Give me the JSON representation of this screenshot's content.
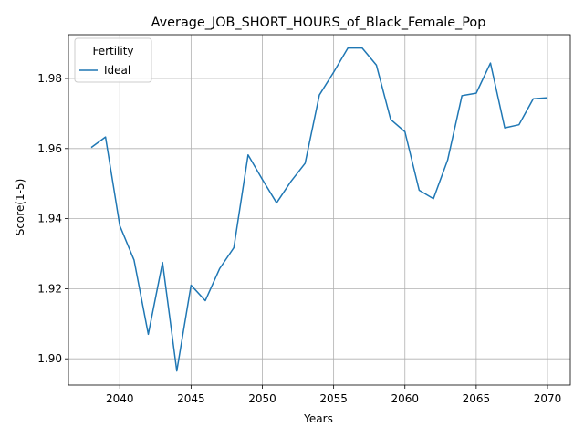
{
  "chart_data": {
    "type": "line",
    "title": "Average_JOB_SHORT_HOURS_of_Black_Female_Pop",
    "xlabel": "Years",
    "ylabel": "Score(1-5)",
    "xlim": [
      2036.4,
      2071.6
    ],
    "ylim": [
      1.8925,
      1.9925
    ],
    "xticks": [
      2040,
      2045,
      2050,
      2055,
      2060,
      2065,
      2070
    ],
    "yticks": [
      1.9,
      1.92,
      1.94,
      1.96,
      1.98
    ],
    "xtick_labels": [
      "2040",
      "2045",
      "2050",
      "2055",
      "2060",
      "2065",
      "2070"
    ],
    "ytick_labels": [
      "1.90",
      "1.92",
      "1.94",
      "1.96",
      "1.98"
    ],
    "grid": true,
    "legend": {
      "title": "Fertility",
      "placement": "top-left"
    },
    "series": [
      {
        "name": "Ideal",
        "color": "#1f77b4",
        "x": [
          2038,
          2039,
          2040,
          2041,
          2042,
          2043,
          2044,
          2045,
          2046,
          2047,
          2048,
          2049,
          2050,
          2051,
          2052,
          2053,
          2054,
          2055,
          2056,
          2057,
          2058,
          2059,
          2060,
          2061,
          2062,
          2063,
          2064,
          2065,
          2066,
          2067,
          2068,
          2069,
          2070
        ],
        "y": [
          1.9603,
          1.9633,
          1.938,
          1.9282,
          1.907,
          1.9275,
          1.8965,
          1.921,
          1.9166,
          1.9257,
          1.9317,
          1.9582,
          1.9512,
          1.9445,
          1.9506,
          1.9558,
          1.9753,
          1.9818,
          1.9887,
          1.9887,
          1.9838,
          1.9683,
          1.9648,
          1.9481,
          1.9457,
          1.9568,
          1.9751,
          1.9758,
          1.9844,
          1.9659,
          1.9668,
          1.9742,
          1.9745
        ]
      }
    ]
  }
}
